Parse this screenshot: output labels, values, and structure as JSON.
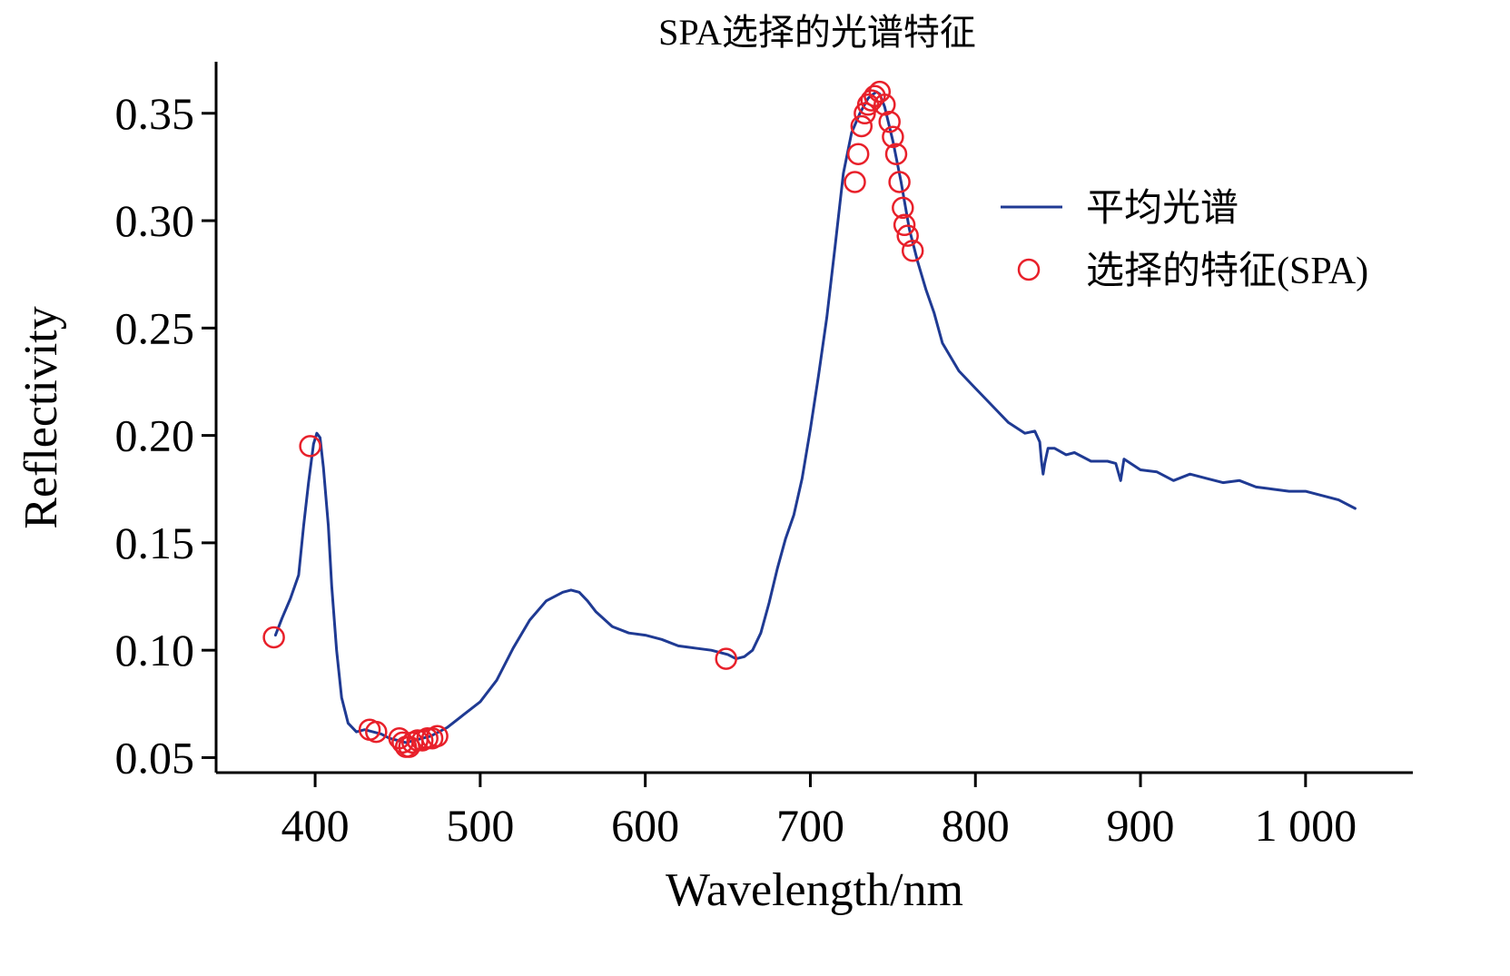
{
  "chart_data": {
    "type": "line",
    "title": "SPA选择的光谱特征",
    "xlabel": "Wavelength/nm",
    "ylabel": "Reflectivity",
    "xlim": [
      340,
      1065
    ],
    "ylim": [
      0.043,
      0.374
    ],
    "x_ticks": [
      400,
      500,
      600,
      700,
      800,
      900,
      1000
    ],
    "x_tick_labels": [
      "400",
      "500",
      "600",
      "700",
      "800",
      "900",
      "1 000"
    ],
    "y_ticks": [
      0.05,
      0.1,
      0.15,
      0.2,
      0.25,
      0.3,
      0.35
    ],
    "y_tick_labels": [
      "0.05",
      "0.10",
      "0.15",
      "0.20",
      "0.25",
      "0.30",
      "0.35"
    ],
    "grid": false,
    "legend_position": "right",
    "series": [
      {
        "name": "平均光谱",
        "kind": "line",
        "color": "#1f3a93",
        "x": [
          376,
          380,
          385,
          390,
          393,
          396,
          399,
          401,
          403,
          405,
          408,
          410,
          413,
          416,
          420,
          425,
          430,
          435,
          440,
          445,
          450,
          455,
          460,
          465,
          470,
          475,
          480,
          490,
          500,
          510,
          520,
          530,
          540,
          550,
          555,
          560,
          565,
          570,
          580,
          590,
          600,
          610,
          620,
          630,
          640,
          650,
          655,
          660,
          665,
          670,
          675,
          680,
          685,
          690,
          695,
          700,
          705,
          710,
          715,
          720,
          725,
          730,
          735,
          740,
          742,
          745,
          750,
          755,
          760,
          765,
          770,
          775,
          780,
          790,
          800,
          810,
          820,
          830,
          836,
          839,
          840,
          841,
          842,
          844,
          848,
          855,
          860,
          870,
          880,
          885,
          888,
          890,
          900,
          910,
          920,
          930,
          940,
          950,
          960,
          970,
          980,
          990,
          1000,
          1010,
          1020,
          1030
        ],
        "y": [
          0.107,
          0.115,
          0.124,
          0.135,
          0.158,
          0.178,
          0.196,
          0.201,
          0.199,
          0.185,
          0.158,
          0.13,
          0.1,
          0.078,
          0.066,
          0.062,
          0.063,
          0.062,
          0.061,
          0.059,
          0.058,
          0.057,
          0.058,
          0.059,
          0.06,
          0.062,
          0.064,
          0.07,
          0.076,
          0.086,
          0.101,
          0.114,
          0.123,
          0.127,
          0.128,
          0.127,
          0.123,
          0.118,
          0.111,
          0.108,
          0.107,
          0.105,
          0.102,
          0.101,
          0.1,
          0.098,
          0.096,
          0.097,
          0.1,
          0.108,
          0.122,
          0.138,
          0.152,
          0.163,
          0.18,
          0.203,
          0.228,
          0.255,
          0.288,
          0.322,
          0.341,
          0.35,
          0.357,
          0.36,
          0.359,
          0.353,
          0.337,
          0.318,
          0.296,
          0.281,
          0.268,
          0.257,
          0.243,
          0.23,
          0.222,
          0.214,
          0.206,
          0.201,
          0.202,
          0.197,
          0.188,
          0.182,
          0.187,
          0.194,
          0.194,
          0.191,
          0.192,
          0.188,
          0.188,
          0.187,
          0.179,
          0.189,
          0.184,
          0.183,
          0.179,
          0.182,
          0.18,
          0.178,
          0.179,
          0.176,
          0.175,
          0.174,
          0.174,
          0.172,
          0.17,
          0.166
        ]
      },
      {
        "name": "选择的特征(SPA)",
        "kind": "marker",
        "marker": "circle",
        "color": "#e8202a",
        "x": [
          375,
          397,
          433,
          437,
          451,
          453,
          455,
          457,
          459,
          462,
          465,
          468,
          471,
          474,
          649,
          727,
          729,
          731,
          733,
          735,
          737,
          739,
          742,
          745,
          748,
          750,
          752,
          754,
          756,
          757,
          759,
          762
        ],
        "y": [
          0.106,
          0.195,
          0.063,
          0.062,
          0.059,
          0.057,
          0.055,
          0.055,
          0.057,
          0.058,
          0.058,
          0.059,
          0.059,
          0.06,
          0.096,
          0.318,
          0.331,
          0.344,
          0.35,
          0.354,
          0.356,
          0.358,
          0.36,
          0.354,
          0.346,
          0.339,
          0.331,
          0.318,
          0.306,
          0.298,
          0.293,
          0.286
        ]
      }
    ]
  }
}
